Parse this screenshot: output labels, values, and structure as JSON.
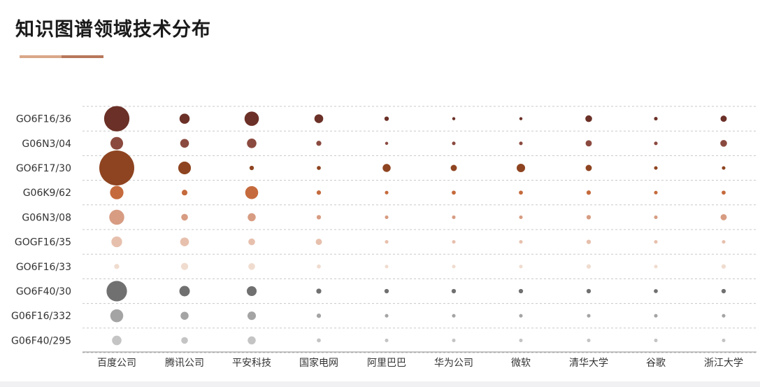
{
  "title": "知识图谱领域技术分布",
  "colors": {
    "underline": [
      "#d9a78a",
      "#b8775a"
    ],
    "grid": "#c8c8c8",
    "axis": "#888888"
  },
  "chart_data": {
    "type": "scatter",
    "title": "知识图谱领域技术分布",
    "x_categories": [
      "百度公司",
      "腾讯公司",
      "平安科技",
      "国家电网",
      "阿里巴巴",
      "华为公司",
      "微软",
      "清华大学",
      "谷歌",
      "浙江大学"
    ],
    "y_categories": [
      "GO6F16/36",
      "G06N3/04",
      "GO6F17/30",
      "G06K9/62",
      "G06N3/08",
      "GOGF16/35",
      "GO6F16/33",
      "GO6F40/30",
      "G06F16/332",
      "G06F40/295"
    ],
    "row_colors": [
      "#6b3027",
      "#8b4a3f",
      "#8e4420",
      "#c56a3c",
      "#d79c82",
      "#e7c0ad",
      "#f0dccf",
      "#707070",
      "#a4a4a4",
      "#c4c4c4"
    ],
    "grid": true,
    "value_note": "bubble size encodes relative magnitude (estimated)",
    "values": [
      [
        100,
        16,
        32,
        12,
        3,
        1.5,
        1.5,
        7,
        2,
        6
      ],
      [
        25,
        12,
        14,
        4,
        1.5,
        2,
        2,
        6,
        2,
        7
      ],
      [
        190,
        25,
        3,
        2.5,
        10,
        6,
        11,
        6,
        2,
        2
      ],
      [
        28,
        5,
        26,
        3,
        2,
        2.5,
        2.5,
        3,
        2,
        2.5
      ],
      [
        35,
        7,
        10,
        3,
        2,
        2,
        2,
        3,
        2,
        6
      ],
      [
        18,
        12,
        7,
        6,
        2,
        2,
        2,
        3,
        2,
        2
      ],
      [
        4,
        8,
        7,
        2.5,
        2,
        2,
        2,
        3,
        2,
        3
      ],
      [
        65,
        17,
        15,
        4,
        3,
        3,
        3,
        3,
        2.5,
        3
      ],
      [
        26,
        10,
        11,
        3,
        2,
        2,
        2,
        2,
        2,
        2
      ],
      [
        14,
        7,
        10,
        2.5,
        2,
        2,
        2,
        2,
        2,
        2
      ]
    ]
  }
}
